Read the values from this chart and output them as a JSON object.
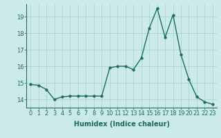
{
  "x": [
    0,
    1,
    2,
    3,
    4,
    5,
    6,
    7,
    8,
    9,
    10,
    11,
    12,
    13,
    14,
    15,
    16,
    17,
    18,
    19,
    20,
    21,
    22,
    23
  ],
  "y": [
    14.9,
    14.85,
    14.6,
    14.0,
    14.15,
    14.2,
    14.2,
    14.2,
    14.2,
    14.2,
    15.9,
    16.0,
    16.0,
    15.8,
    16.5,
    18.3,
    19.5,
    17.75,
    19.1,
    16.7,
    15.2,
    14.15,
    13.85,
    13.7
  ],
  "bg_color": "#cceae7",
  "line_color": "#1a6b60",
  "marker_color": "#1a6b60",
  "grid_color": "#aad4d0",
  "xlabel": "Humidex (Indice chaleur)",
  "xlim": [
    -0.5,
    23.5
  ],
  "ylim": [
    13.5,
    19.75
  ],
  "yticks": [
    14,
    15,
    16,
    17,
    18,
    19
  ],
  "xticks": [
    0,
    1,
    2,
    3,
    4,
    5,
    6,
    7,
    8,
    9,
    10,
    11,
    12,
    13,
    14,
    15,
    16,
    17,
    18,
    19,
    20,
    21,
    22,
    23
  ],
  "tick_color": "#1a6b60",
  "label_color": "#1a6b60",
  "font_size_xlabel": 7,
  "font_size_ticks": 6,
  "line_width": 1.0,
  "marker_size": 2.5
}
